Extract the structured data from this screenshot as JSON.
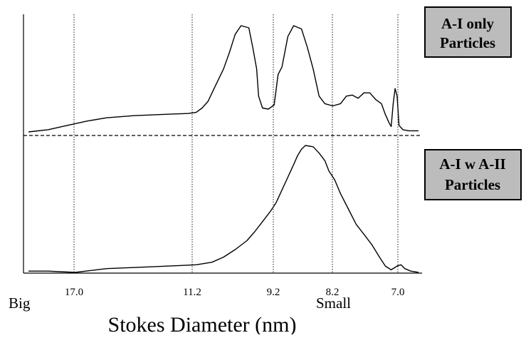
{
  "chart_data": {
    "type": "line",
    "title": "",
    "xlabel": "Stokes Diameter (nm)",
    "ylabel": "",
    "x_direction_labels": {
      "left": "Big",
      "right": "Small"
    },
    "x_ticks": [
      "17.0",
      "11.2",
      "9.2",
      "8.2",
      "7.0"
    ],
    "grid": "vertical dotted lines at tick positions",
    "baseline_separator": "dashed",
    "panels": [
      {
        "name": "A-I only Particles",
        "label_lines": [
          "A-I only",
          "Particles"
        ],
        "position": "top",
        "points": [
          [
            0.0,
            0.02
          ],
          [
            0.05,
            0.04
          ],
          [
            0.1,
            0.08
          ],
          [
            0.15,
            0.12
          ],
          [
            0.2,
            0.15
          ],
          [
            0.27,
            0.17
          ],
          [
            0.34,
            0.18
          ],
          [
            0.41,
            0.19
          ],
          [
            0.43,
            0.2
          ],
          [
            0.445,
            0.24
          ],
          [
            0.46,
            0.3
          ],
          [
            0.48,
            0.45
          ],
          [
            0.5,
            0.6
          ],
          [
            0.515,
            0.75
          ],
          [
            0.53,
            0.92
          ],
          [
            0.545,
            1.0
          ],
          [
            0.565,
            0.98
          ],
          [
            0.575,
            0.8
          ],
          [
            0.585,
            0.6
          ],
          [
            0.59,
            0.35
          ],
          [
            0.6,
            0.24
          ],
          [
            0.615,
            0.23
          ],
          [
            0.63,
            0.27
          ],
          [
            0.64,
            0.55
          ],
          [
            0.65,
            0.62
          ],
          [
            0.665,
            0.9
          ],
          [
            0.68,
            1.0
          ],
          [
            0.7,
            0.97
          ],
          [
            0.715,
            0.8
          ],
          [
            0.73,
            0.6
          ],
          [
            0.745,
            0.35
          ],
          [
            0.76,
            0.28
          ],
          [
            0.78,
            0.26
          ],
          [
            0.8,
            0.28
          ],
          [
            0.815,
            0.35
          ],
          [
            0.83,
            0.36
          ],
          [
            0.845,
            0.33
          ],
          [
            0.86,
            0.38
          ],
          [
            0.875,
            0.38
          ],
          [
            0.89,
            0.32
          ],
          [
            0.905,
            0.28
          ],
          [
            0.915,
            0.18
          ],
          [
            0.925,
            0.1
          ],
          [
            0.93,
            0.07
          ],
          [
            0.935,
            0.28
          ],
          [
            0.94,
            0.42
          ],
          [
            0.945,
            0.35
          ],
          [
            0.95,
            0.08
          ],
          [
            0.96,
            0.04
          ],
          [
            0.975,
            0.03
          ],
          [
            1.0,
            0.03
          ]
        ]
      },
      {
        "name": "A-I w A-II Particles",
        "label_lines": [
          "A-I w A-II",
          "Particles"
        ],
        "position": "bottom",
        "points": [
          [
            0.0,
            0.01
          ],
          [
            0.05,
            0.01
          ],
          [
            0.12,
            0.0
          ],
          [
            0.2,
            0.03
          ],
          [
            0.28,
            0.04
          ],
          [
            0.36,
            0.05
          ],
          [
            0.43,
            0.06
          ],
          [
            0.47,
            0.08
          ],
          [
            0.5,
            0.12
          ],
          [
            0.53,
            0.18
          ],
          [
            0.56,
            0.25
          ],
          [
            0.58,
            0.32
          ],
          [
            0.6,
            0.4
          ],
          [
            0.62,
            0.48
          ],
          [
            0.635,
            0.55
          ],
          [
            0.65,
            0.65
          ],
          [
            0.665,
            0.75
          ],
          [
            0.68,
            0.85
          ],
          [
            0.69,
            0.92
          ],
          [
            0.7,
            0.97
          ],
          [
            0.71,
            1.0
          ],
          [
            0.73,
            0.99
          ],
          [
            0.745,
            0.94
          ],
          [
            0.76,
            0.88
          ],
          [
            0.77,
            0.8
          ],
          [
            0.785,
            0.73
          ],
          [
            0.8,
            0.62
          ],
          [
            0.82,
            0.5
          ],
          [
            0.84,
            0.38
          ],
          [
            0.86,
            0.3
          ],
          [
            0.88,
            0.22
          ],
          [
            0.9,
            0.12
          ],
          [
            0.915,
            0.05
          ],
          [
            0.93,
            0.02
          ],
          [
            0.945,
            0.05
          ],
          [
            0.955,
            0.06
          ],
          [
            0.965,
            0.03
          ],
          [
            0.98,
            0.01
          ],
          [
            1.0,
            0.0
          ]
        ]
      }
    ]
  }
}
